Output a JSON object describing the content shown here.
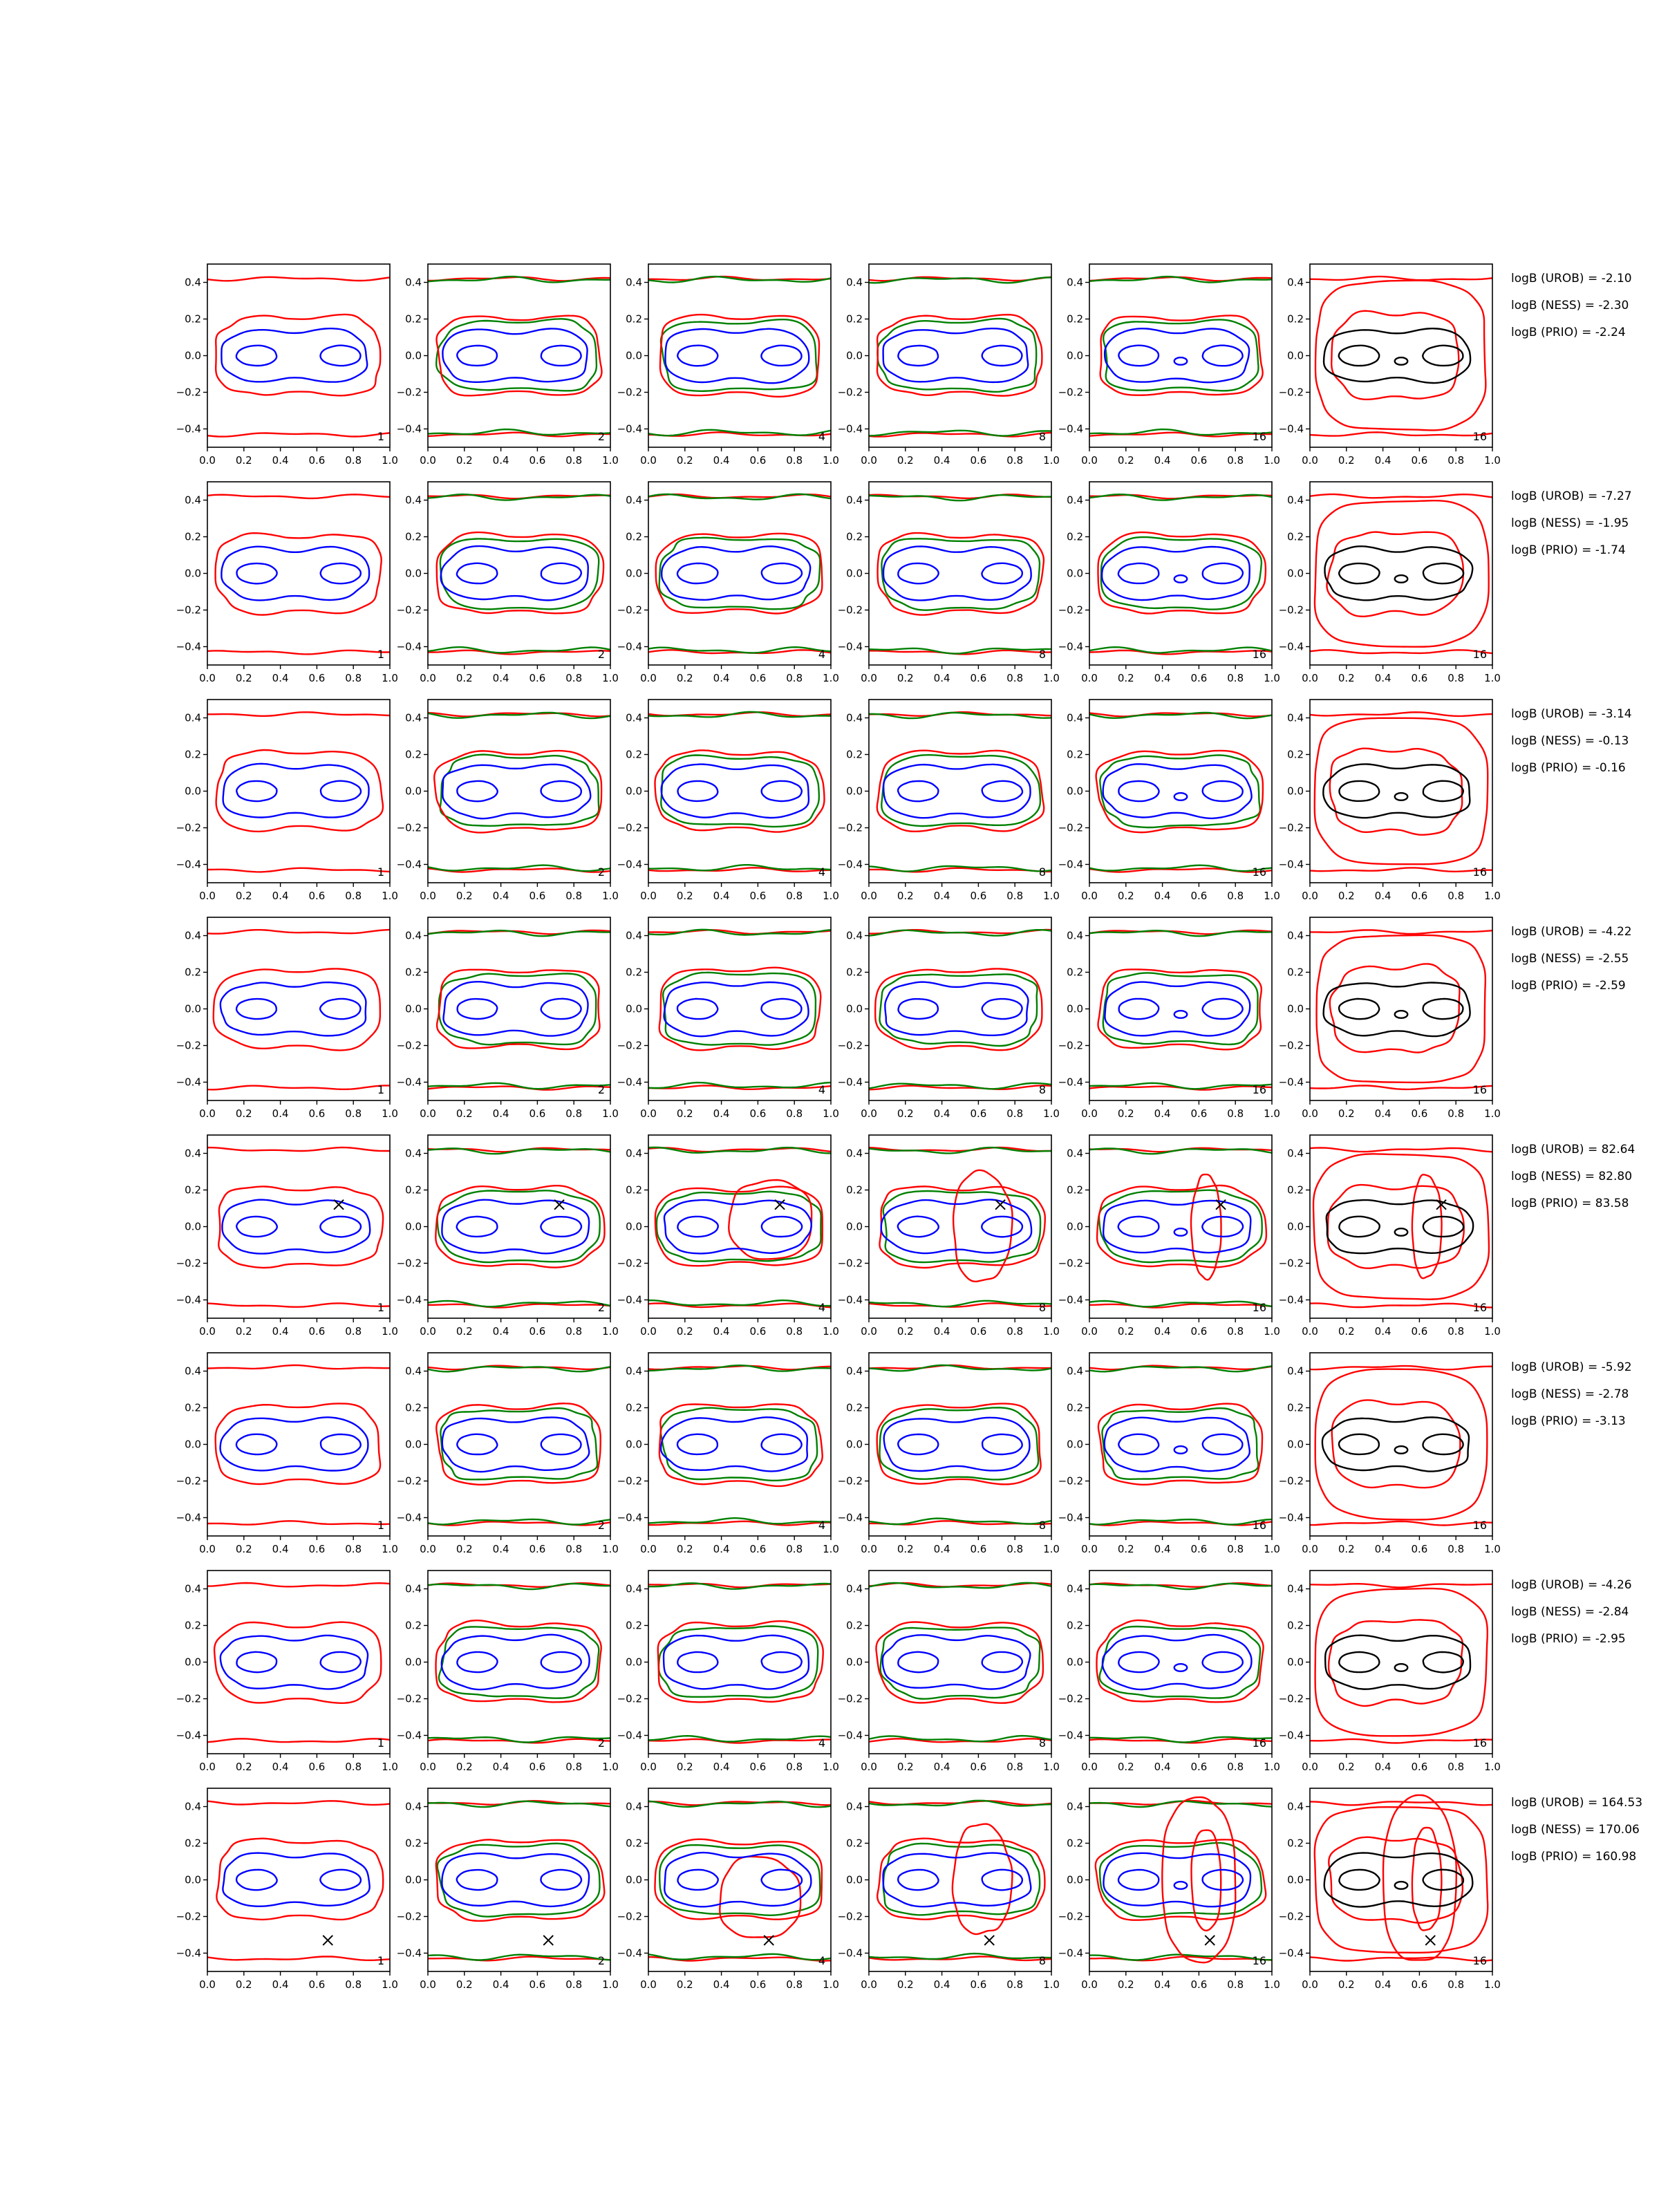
{
  "chart_data": {
    "type": "contour-grid",
    "rows": 8,
    "columns": 6,
    "xlim": [
      0.0,
      1.0
    ],
    "ylim": [
      -0.5,
      0.5
    ],
    "xticks": [
      "0.0",
      "0.2",
      "0.4",
      "0.6",
      "0.8",
      "1.0"
    ],
    "yticks": [
      "0.4",
      "0.2",
      "0.0",
      "−0.2",
      "−0.4"
    ],
    "ytick_values": [
      0.4,
      0.2,
      0.0,
      -0.2,
      -0.4
    ],
    "xtick_values": [
      0.0,
      0.2,
      0.4,
      0.6,
      0.8,
      1.0
    ],
    "panel_labels": [
      "1",
      "2",
      "4",
      "8",
      "16",
      "16"
    ],
    "colors": {
      "inner": "#0000ff",
      "middle": "#008000",
      "outer": "#ff0000",
      "true": "#000000"
    },
    "marker_rows": [
      {
        "row": 4,
        "x": 0.72,
        "y": 0.12
      },
      {
        "row": 7,
        "x": 0.66,
        "y": -0.33
      }
    ],
    "logb": [
      [
        "logB (UROB) = -2.10",
        "logB (NESS) = -2.30",
        "logB (PRIO) = -2.24"
      ],
      [
        "logB (UROB) = -7.27",
        "logB (NESS) = -1.95",
        "logB (PRIO) = -1.74"
      ],
      [
        "logB (UROB) = -3.14",
        "logB (NESS) = -0.13",
        "logB (PRIO) = -0.16"
      ],
      [
        "logB (UROB) = -4.22",
        "logB (NESS) = -2.55",
        "logB (PRIO) = -2.59"
      ],
      [
        "logB (UROB) = 82.64",
        "logB (NESS) = 82.80",
        "logB (PRIO) = 83.58"
      ],
      [
        "logB (UROB) = -5.92",
        "logB (NESS) = -2.78",
        "logB (PRIO) = -3.13"
      ],
      [
        "logB (UROB) = -4.26",
        "logB (NESS) = -2.84",
        "logB (PRIO) = -2.95"
      ],
      [
        "logB (UROB) = 164.53",
        "logB (NESS) = 170.06",
        "logB (PRIO) = 160.98"
      ]
    ]
  }
}
